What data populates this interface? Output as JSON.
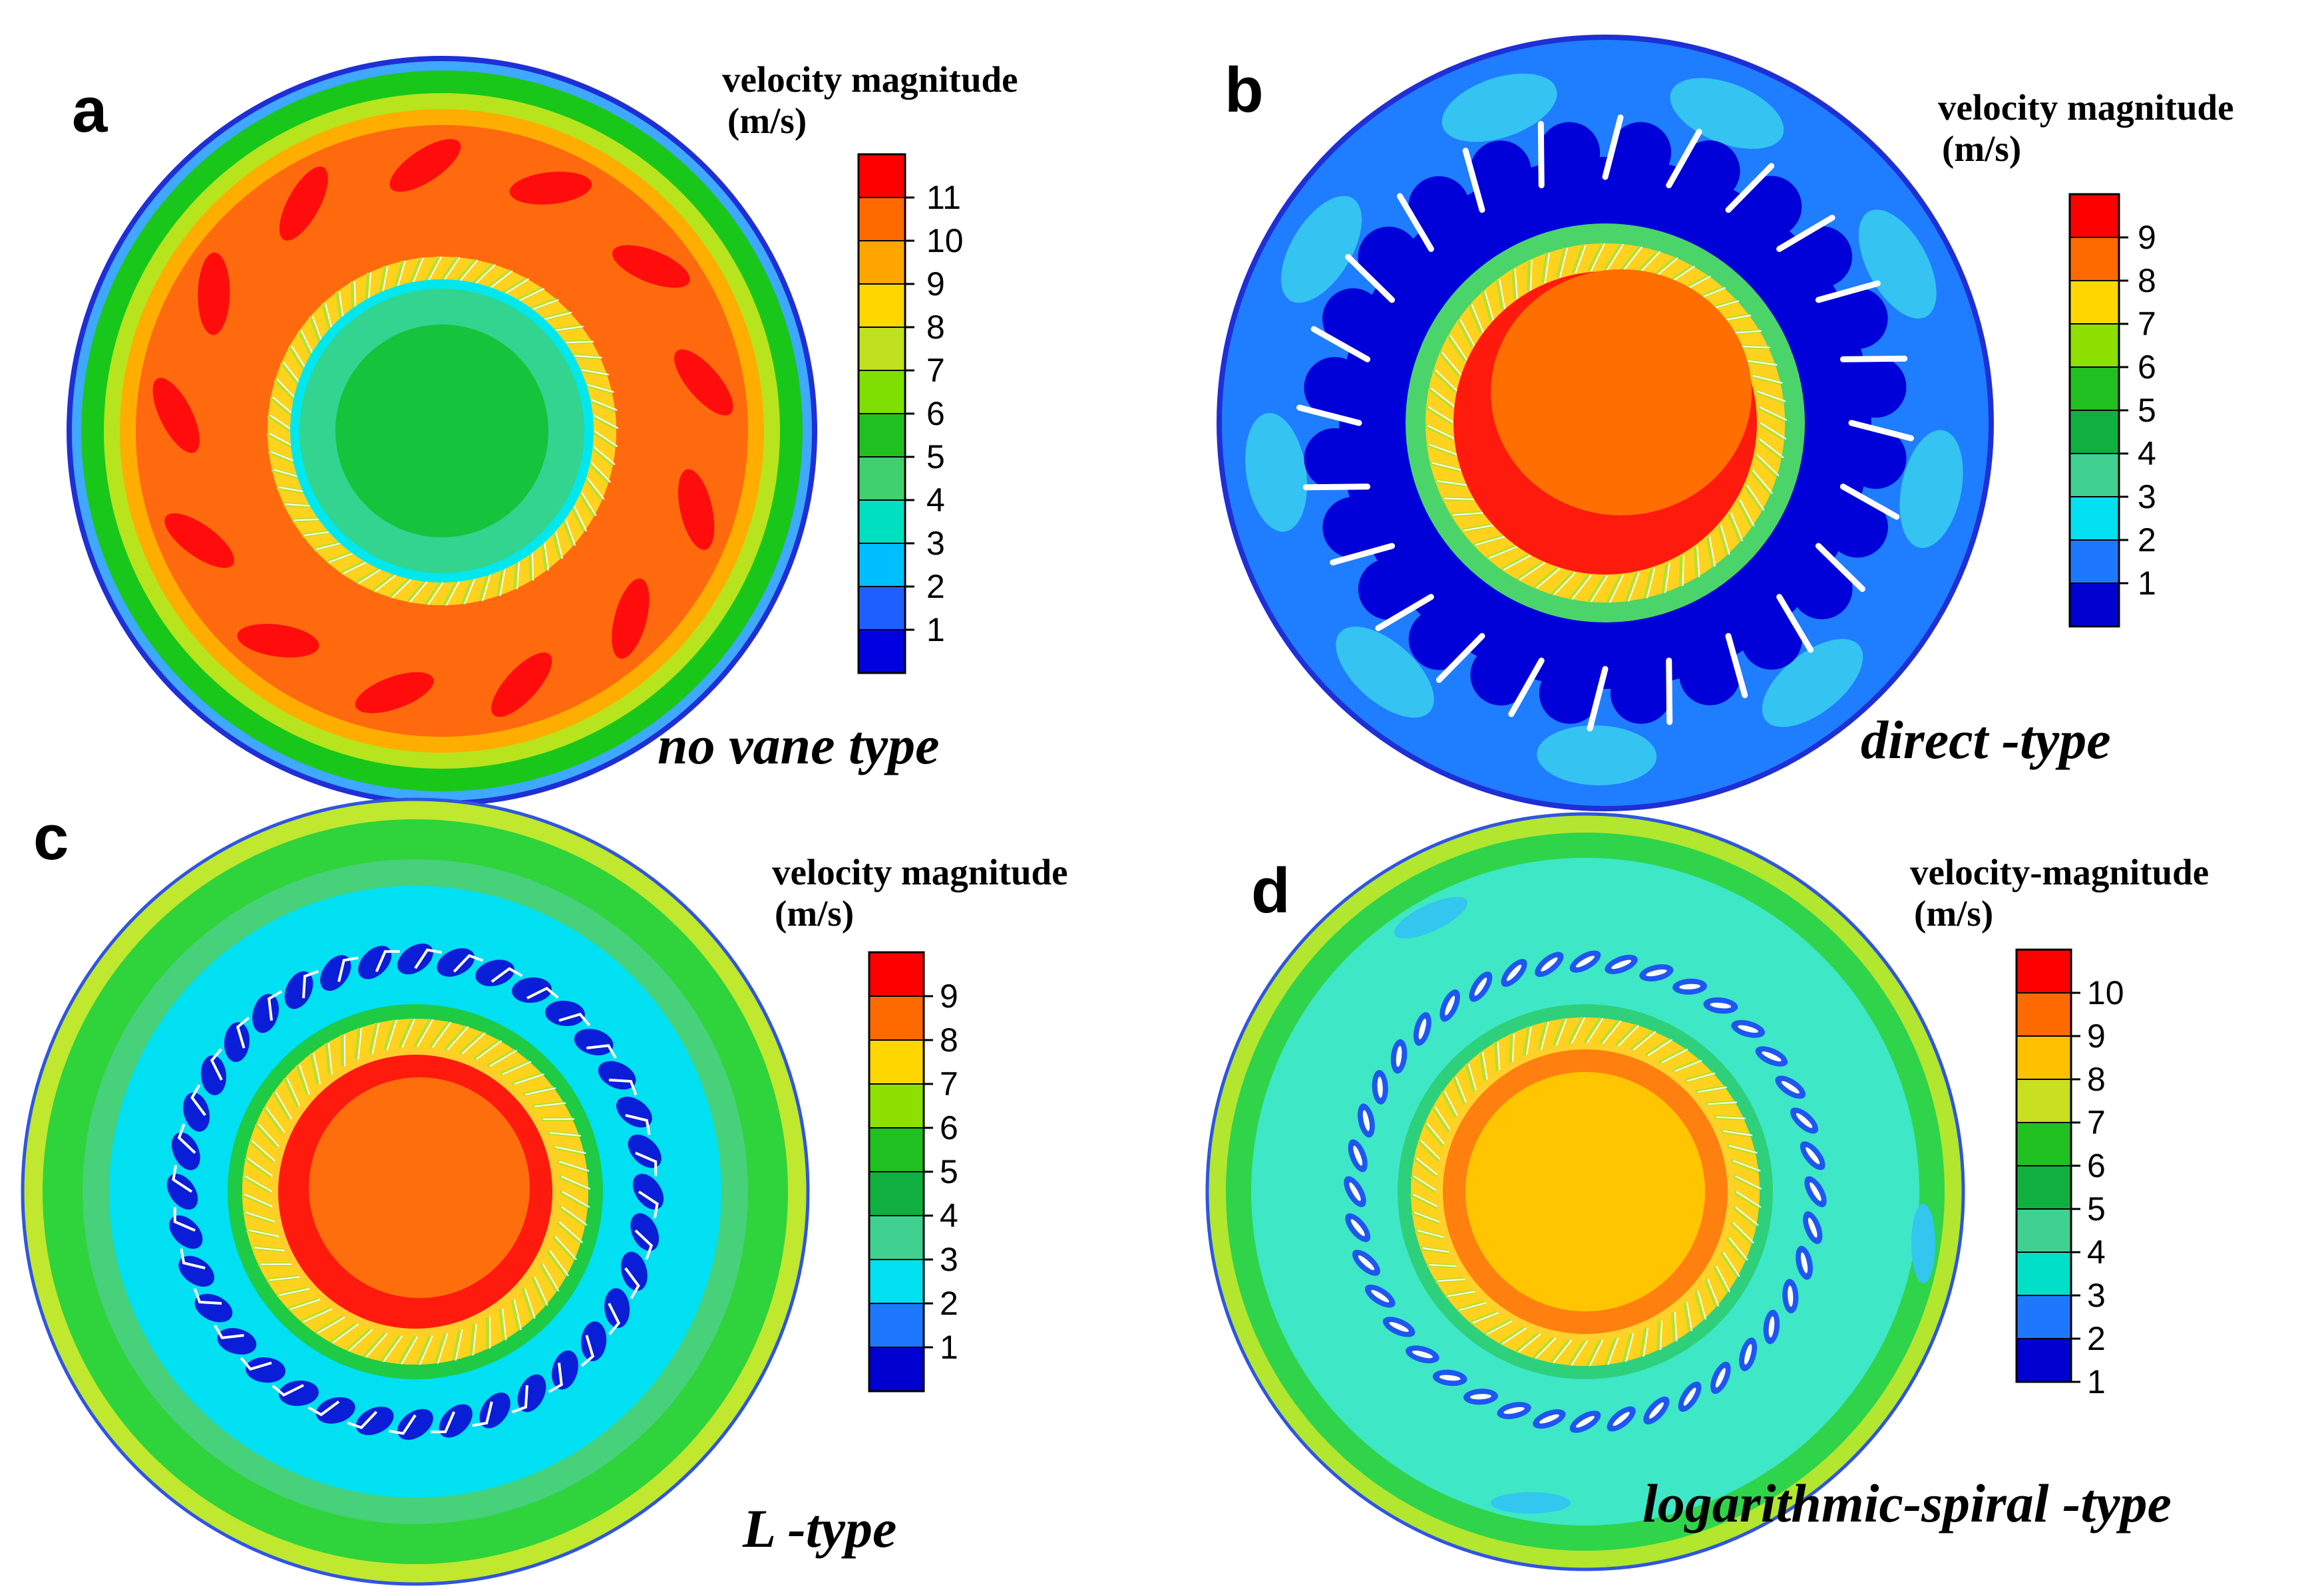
{
  "figure": {
    "panels": [
      {
        "letter": "a",
        "legend_title_1": "velocity magnitude",
        "legend_title_2": "(m/s)",
        "levels": [
          "11",
          "10",
          "9",
          "8",
          "7",
          "6",
          "5",
          "4",
          "3",
          "2",
          "1"
        ],
        "level_colors": [
          "#ff0000",
          "#ff6a00",
          "#ffa500",
          "#ffd700",
          "#c0e020",
          "#7fe000",
          "#20c020",
          "#40d070",
          "#00e0c0",
          "#00bfff",
          "#1e60ff",
          "#0000e0"
        ],
        "zones": [
          "#3fa8ff",
          "#19c71a",
          "#b7e41d",
          "#ffae00",
          "#ff6a0e",
          "#32d48f",
          "#15c33c"
        ],
        "vane_type": "none",
        "type_label": "no vane type"
      },
      {
        "letter": "b",
        "legend_title_1": "velocity magnitude",
        "legend_title_2": "(m/s)",
        "levels": [
          "9",
          "8",
          "7",
          "6",
          "5",
          "4",
          "3",
          "2",
          "1"
        ],
        "level_colors": [
          "#ff0000",
          "#ff6a00",
          "#ffd700",
          "#8ee000",
          "#20c020",
          "#10b040",
          "#40d090",
          "#00e0f0",
          "#1e78ff",
          "#0000d0"
        ],
        "zones": [
          "#1f7dff",
          "#2ea0ff",
          "#0000d8",
          "#ffcf2a",
          "#ff6e00",
          "#ff1a0e",
          "#00e7ef"
        ],
        "vane_type": "straight",
        "type_label": "direct -type"
      },
      {
        "letter": "c",
        "legend_title_1": "velocity magnitude",
        "legend_title_2": "(m/s)",
        "levels": [
          "9",
          "8",
          "7",
          "6",
          "5",
          "4",
          "3",
          "2",
          "1"
        ],
        "level_colors": [
          "#ff0000",
          "#ff6a00",
          "#ffd700",
          "#8ee000",
          "#20c020",
          "#10b040",
          "#40d090",
          "#00e0f0",
          "#1e78ff",
          "#0000d0"
        ],
        "zones": [
          "#bfe82e",
          "#2fd33b",
          "#00e0f3",
          "#0a1ed8",
          "#ffce2a",
          "#ff1a0e",
          "#ff6e0c"
        ],
        "vane_type": "L-shaped",
        "type_label": "L -type"
      },
      {
        "letter": "d",
        "legend_title_1": "velocity-magnitude",
        "legend_title_2": "(m/s)",
        "levels": [
          "10",
          "9",
          "8",
          "7",
          "6",
          "5",
          "4",
          "3",
          "2",
          "1"
        ],
        "level_colors": [
          "#ff0000",
          "#ff6a00",
          "#ffc000",
          "#c8e020",
          "#20c020",
          "#10b040",
          "#40d090",
          "#00e0c8",
          "#1e78ff",
          "#0000d0"
        ],
        "zones": [
          "#b2e62f",
          "#2fd44b",
          "#3ee7c6",
          "#1c74ff",
          "#ffd12a",
          "#ff800f",
          "#ffc500"
        ],
        "vane_type": "spiral",
        "type_label": "logarithmic-spiral -type"
      }
    ]
  }
}
